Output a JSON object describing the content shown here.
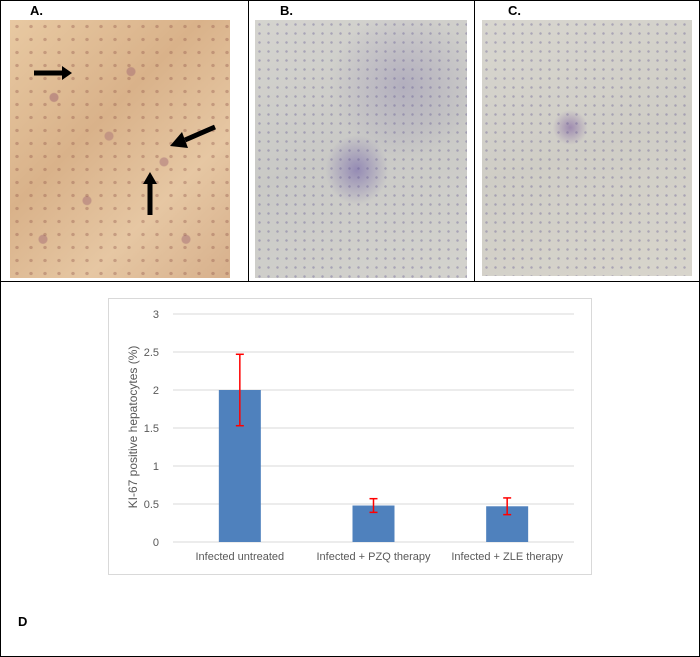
{
  "panels": {
    "a": {
      "label": "A."
    },
    "b": {
      "label": "B."
    },
    "c": {
      "label": "C."
    },
    "d": {
      "label": "D"
    }
  },
  "chart_data": {
    "type": "bar",
    "categories": [
      "Infected untreated",
      "Infected + PZQ therapy",
      "Infected + ZLE therapy"
    ],
    "values": [
      2.0,
      0.48,
      0.47
    ],
    "error": [
      0.47,
      0.09,
      0.11
    ],
    "ylabel": "KI-67 positive hepatocytes (%)",
    "ylim": [
      0,
      3
    ],
    "yticks": [
      0,
      0.5,
      1,
      1.5,
      2,
      2.5,
      3
    ],
    "grid": true,
    "bar_color": "#4f81bd",
    "error_color": "#ff0000"
  }
}
